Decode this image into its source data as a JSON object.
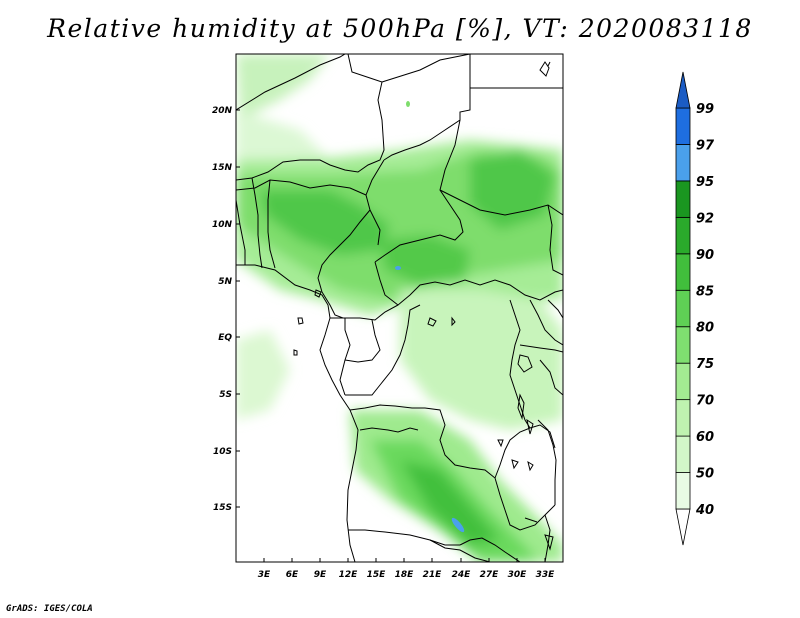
{
  "title": "Relative humidity at 500hPa [%], VT: 2020083118",
  "credit": "GrADS: IGES/COLA",
  "map": {
    "lat_labels": [
      "20N",
      "15N",
      "10N",
      "5N",
      "EQ",
      "5S",
      "10S",
      "15S"
    ],
    "lon_labels": [
      "3E",
      "6E",
      "9E",
      "12E",
      "15E",
      "18E",
      "21E",
      "24E",
      "27E",
      "30E",
      "33E"
    ]
  },
  "colorbar": {
    "levels": [
      "40",
      "50",
      "60",
      "70",
      "75",
      "80",
      "85",
      "90",
      "92",
      "95",
      "97",
      "99"
    ],
    "colors": [
      "#ffffff",
      "#e8fbe4",
      "#d2f7c8",
      "#bff2b0",
      "#a3eb92",
      "#7fdf70",
      "#5fd055",
      "#41be3c",
      "#2aaa2b",
      "#1a9620",
      "#4aa0ec",
      "#1e6ee0",
      "#1b5cc4"
    ]
  }
}
